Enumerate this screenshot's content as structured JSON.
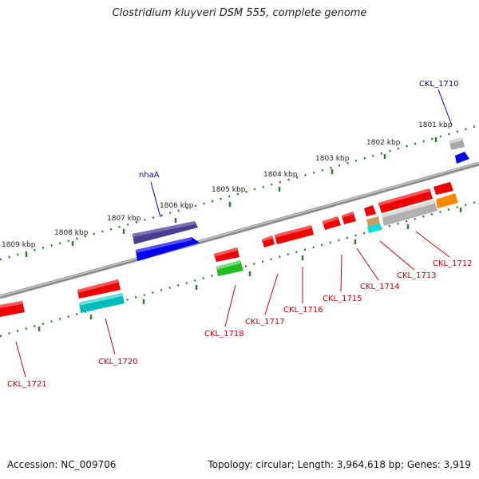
{
  "title": "Clostridium kluyveri DSM 555, complete genome",
  "accession": "Accession: NC_009706",
  "topology": "Topology: circular; Length: 3,964,618 bp; Genes: 3,919",
  "colors": {
    "backbone": "#8c8c8c",
    "ticks": "#2e7d2e",
    "label_red": "#cc0000",
    "label_blue": "#0000cc"
  },
  "ruler": [
    {
      "label": "1809 kbp"
    },
    {
      "label": "1808 kbp"
    },
    {
      "label": "1807 kbp"
    },
    {
      "label": "1806 kbp"
    },
    {
      "label": "1805 kbp"
    },
    {
      "label": "1804 kbp"
    },
    {
      "label": "1803 kbp"
    },
    {
      "label": "1802 kbp"
    },
    {
      "label": "1801 kbp"
    }
  ],
  "features": [
    {
      "name": "CKL_1710",
      "color": "#0000cc",
      "strand": "+",
      "labelled": true
    },
    {
      "name": "nhaA",
      "color": "#0000cc",
      "strand": "+",
      "labelled": true
    },
    {
      "name": "CKL_1712",
      "color": "#cc0000",
      "strand": "-",
      "labelled": true
    },
    {
      "name": "CKL_1713",
      "color": "#cc0000",
      "strand": "-",
      "labelled": true
    },
    {
      "name": "CKL_1714",
      "color": "#cc0000",
      "strand": "-",
      "labelled": true
    },
    {
      "name": "CKL_1715",
      "color": "#cc0000",
      "strand": "-",
      "labelled": true
    },
    {
      "name": "CKL_1716",
      "color": "#cc0000",
      "strand": "-",
      "labelled": true
    },
    {
      "name": "CKL_1717",
      "color": "#cc0000",
      "strand": "-",
      "labelled": true
    },
    {
      "name": "CKL_1718",
      "color": "#cc0000",
      "strand": "-",
      "labelled": true
    },
    {
      "name": "CKL_1720",
      "color": "#cc0000",
      "strand": "-",
      "labelled": true
    },
    {
      "name": "CKL_1721",
      "color": "#cc0000",
      "strand": "-",
      "labelled": true
    }
  ]
}
